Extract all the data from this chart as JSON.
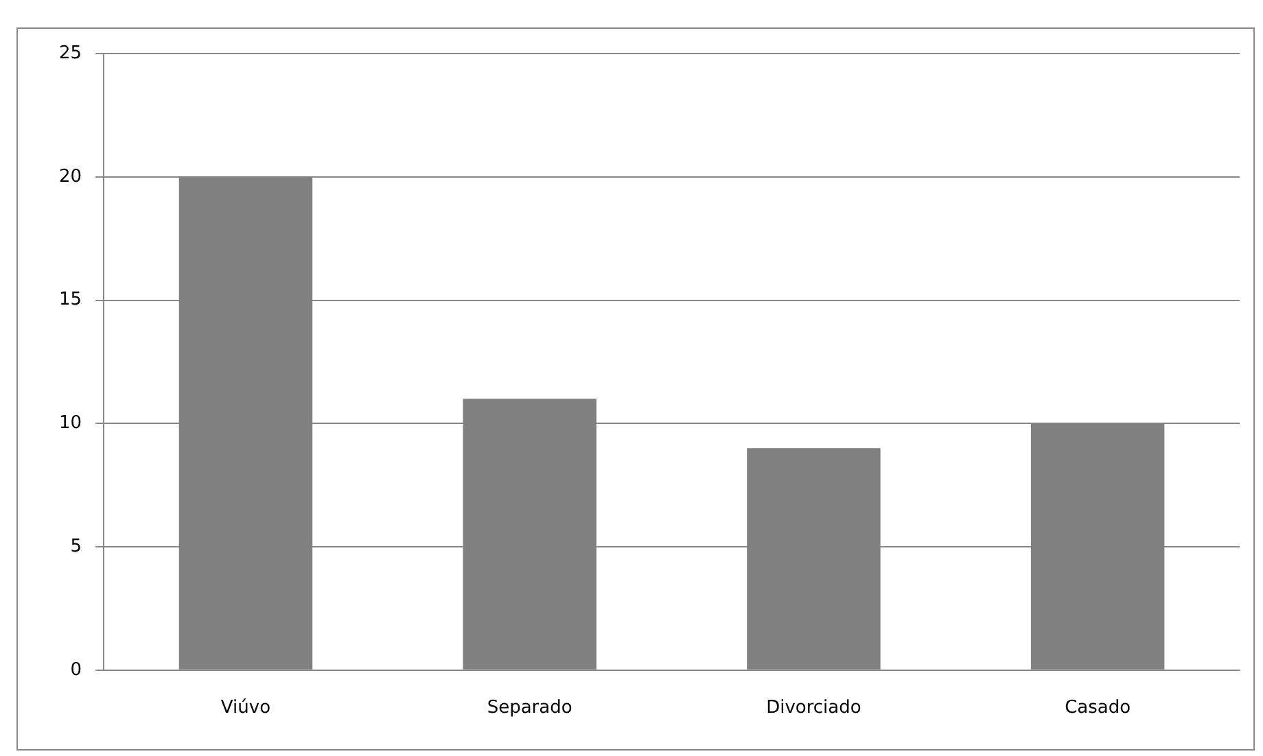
{
  "chart_data": {
    "type": "bar",
    "categories": [
      "Viúvo",
      "Separado",
      "Divorciado",
      "Casado"
    ],
    "values": [
      20,
      11,
      9,
      10
    ],
    "color": "#808080",
    "ylim": [
      0,
      25
    ],
    "yticks": [
      0,
      5,
      10,
      15,
      20,
      25
    ],
    "grid": "y",
    "legend": false
  }
}
